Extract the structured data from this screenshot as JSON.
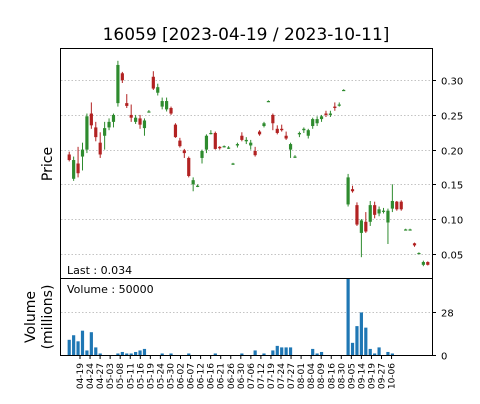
{
  "chart_data": {
    "type": "candlestick",
    "title": "16059   [2023-04-19 / 2023-10-11]",
    "price_panel": {
      "ylabel": "Price",
      "ylim": [
        0.015,
        0.345
      ],
      "yticks": [
        0.05,
        0.1,
        0.15,
        0.2,
        0.25,
        0.3
      ],
      "ytick_labels": [
        "0.05",
        "0.10",
        "0.15",
        "0.20",
        "0.25",
        "0.30"
      ],
      "grid": true,
      "annotation": "Last : 0.034",
      "up_color": "#2e8b2e",
      "down_color": "#b22222"
    },
    "volume_panel": {
      "ylabel_line1": "Volume",
      "ylabel_line2": "(millions)",
      "ylim": [
        0,
        50
      ],
      "yticks": [
        0,
        28
      ],
      "ytick_labels": [
        "0",
        "28"
      ],
      "grid": true,
      "annotation": "Volume : 50000",
      "bar_color": "#1f77b4"
    },
    "x_tick_labels": [
      "04-19",
      "04-24",
      "04-27",
      "05-03",
      "05-08",
      "05-11",
      "05-16",
      "05-19",
      "05-24",
      "05-30",
      "06-02",
      "06-07",
      "06-12",
      "06-16",
      "06-21",
      "06-26",
      "06-30",
      "07-06",
      "07-12",
      "07-19",
      "07-24",
      "07-27",
      "08-01",
      "08-04",
      "08-09",
      "08-16",
      "08-30",
      "09-05",
      "09-14",
      "09-19",
      "09-27",
      "10-06"
    ],
    "candles": [
      {
        "o": 0.193,
        "h": 0.197,
        "l": 0.183,
        "c": 0.185,
        "v": 10
      },
      {
        "o": 0.158,
        "h": 0.19,
        "l": 0.155,
        "c": 0.185,
        "v": 13
      },
      {
        "o": 0.18,
        "h": 0.204,
        "l": 0.16,
        "c": 0.166,
        "v": 9
      },
      {
        "o": 0.19,
        "h": 0.21,
        "l": 0.17,
        "c": 0.2,
        "v": 16
      },
      {
        "o": 0.2,
        "h": 0.252,
        "l": 0.195,
        "c": 0.248,
        "v": 3
      },
      {
        "o": 0.252,
        "h": 0.268,
        "l": 0.23,
        "c": 0.235,
        "v": 15
      },
      {
        "o": 0.232,
        "h": 0.24,
        "l": 0.212,
        "c": 0.218,
        "v": 5
      },
      {
        "o": 0.21,
        "h": 0.225,
        "l": 0.188,
        "c": 0.193,
        "v": 1
      },
      {
        "o": 0.22,
        "h": 0.24,
        "l": 0.2,
        "c": 0.231,
        "v": 0
      },
      {
        "o": 0.232,
        "h": 0.245,
        "l": 0.228,
        "c": 0.24,
        "v": 0
      },
      {
        "o": 0.24,
        "h": 0.252,
        "l": 0.232,
        "c": 0.25,
        "v": 0
      },
      {
        "o": 0.267,
        "h": 0.328,
        "l": 0.262,
        "c": 0.322,
        "v": 1
      },
      {
        "o": 0.31,
        "h": 0.312,
        "l": 0.296,
        "c": 0.3,
        "v": 2
      },
      {
        "o": 0.267,
        "h": 0.28,
        "l": 0.26,
        "c": 0.263,
        "v": 1
      },
      {
        "o": 0.25,
        "h": 0.265,
        "l": 0.24,
        "c": 0.246,
        "v": 1
      },
      {
        "o": 0.24,
        "h": 0.25,
        "l": 0.237,
        "c": 0.246,
        "v": 2
      },
      {
        "o": 0.245,
        "h": 0.25,
        "l": 0.23,
        "c": 0.236,
        "v": 3
      },
      {
        "o": 0.231,
        "h": 0.245,
        "l": 0.22,
        "c": 0.242,
        "v": 4
      },
      {
        "o": 0.255,
        "h": 0.257,
        "l": 0.254,
        "c": 0.255,
        "v": 0
      },
      {
        "o": 0.305,
        "h": 0.313,
        "l": 0.286,
        "c": 0.288,
        "v": 0
      },
      {
        "o": 0.282,
        "h": 0.295,
        "l": 0.278,
        "c": 0.29,
        "v": 0
      },
      {
        "o": 0.262,
        "h": 0.275,
        "l": 0.258,
        "c": 0.27,
        "v": 1
      },
      {
        "o": 0.258,
        "h": 0.275,
        "l": 0.255,
        "c": 0.27,
        "v": 0
      },
      {
        "o": 0.26,
        "h": 0.262,
        "l": 0.25,
        "c": 0.252,
        "v": 1
      },
      {
        "o": 0.236,
        "h": 0.238,
        "l": 0.217,
        "c": 0.218,
        "v": 0
      },
      {
        "o": 0.213,
        "h": 0.217,
        "l": 0.203,
        "c": 0.205,
        "v": 0
      },
      {
        "o": 0.199,
        "h": 0.201,
        "l": 0.188,
        "c": 0.195,
        "v": 0
      },
      {
        "o": 0.188,
        "h": 0.19,
        "l": 0.16,
        "c": 0.162,
        "v": 1
      },
      {
        "o": 0.15,
        "h": 0.16,
        "l": 0.14,
        "c": 0.156,
        "v": 0
      },
      {
        "o": 0.148,
        "h": 0.15,
        "l": 0.146,
        "c": 0.148,
        "v": 0
      },
      {
        "o": 0.188,
        "h": 0.2,
        "l": 0.18,
        "c": 0.198,
        "v": 0
      },
      {
        "o": 0.2,
        "h": 0.222,
        "l": 0.195,
        "c": 0.22,
        "v": 0
      },
      {
        "o": 0.224,
        "h": 0.228,
        "l": 0.222,
        "c": 0.224,
        "v": 0
      },
      {
        "o": 0.224,
        "h": 0.226,
        "l": 0.2,
        "c": 0.201,
        "v": 1
      },
      {
        "o": 0.204,
        "h": 0.205,
        "l": 0.2,
        "c": 0.202,
        "v": 0
      },
      {
        "o": 0.205,
        "h": 0.206,
        "l": 0.203,
        "c": 0.205,
        "v": 0
      },
      {
        "o": 0.203,
        "h": 0.205,
        "l": 0.201,
        "c": 0.203,
        "v": 0
      },
      {
        "o": 0.18,
        "h": 0.181,
        "l": 0.178,
        "c": 0.18,
        "v": 0
      },
      {
        "o": 0.206,
        "h": 0.21,
        "l": 0.203,
        "c": 0.208,
        "v": 0
      },
      {
        "o": 0.22,
        "h": 0.225,
        "l": 0.212,
        "c": 0.214,
        "v": 1
      },
      {
        "o": 0.212,
        "h": 0.218,
        "l": 0.208,
        "c": 0.214,
        "v": 0
      },
      {
        "o": 0.206,
        "h": 0.214,
        "l": 0.2,
        "c": 0.21,
        "v": 0
      },
      {
        "o": 0.198,
        "h": 0.204,
        "l": 0.19,
        "c": 0.192,
        "v": 3
      },
      {
        "o": 0.226,
        "h": 0.228,
        "l": 0.22,
        "c": 0.222,
        "v": 0
      },
      {
        "o": 0.234,
        "h": 0.24,
        "l": 0.232,
        "c": 0.238,
        "v": 1
      },
      {
        "o": 0.27,
        "h": 0.271,
        "l": 0.269,
        "c": 0.27,
        "v": 0
      },
      {
        "o": 0.25,
        "h": 0.252,
        "l": 0.228,
        "c": 0.238,
        "v": 3
      },
      {
        "o": 0.23,
        "h": 0.235,
        "l": 0.222,
        "c": 0.224,
        "v": 6
      },
      {
        "o": 0.23,
        "h": 0.236,
        "l": 0.226,
        "c": 0.228,
        "v": 5
      },
      {
        "o": 0.22,
        "h": 0.226,
        "l": 0.214,
        "c": 0.216,
        "v": 5
      },
      {
        "o": 0.2,
        "h": 0.21,
        "l": 0.188,
        "c": 0.208,
        "v": 5
      },
      {
        "o": 0.19,
        "h": 0.192,
        "l": 0.188,
        "c": 0.19,
        "v": 0
      },
      {
        "o": 0.222,
        "h": 0.226,
        "l": 0.218,
        "c": 0.224,
        "v": 0
      },
      {
        "o": 0.228,
        "h": 0.232,
        "l": 0.224,
        "c": 0.23,
        "v": 0
      },
      {
        "o": 0.22,
        "h": 0.23,
        "l": 0.216,
        "c": 0.228,
        "v": 0
      },
      {
        "o": 0.234,
        "h": 0.246,
        "l": 0.23,
        "c": 0.244,
        "v": 4
      },
      {
        "o": 0.238,
        "h": 0.248,
        "l": 0.234,
        "c": 0.244,
        "v": 1
      },
      {
        "o": 0.244,
        "h": 0.25,
        "l": 0.24,
        "c": 0.248,
        "v": 2
      },
      {
        "o": 0.252,
        "h": 0.256,
        "l": 0.247,
        "c": 0.25,
        "v": 0
      },
      {
        "o": 0.25,
        "h": 0.256,
        "l": 0.247,
        "c": 0.252,
        "v": 0
      },
      {
        "o": 0.262,
        "h": 0.268,
        "l": 0.256,
        "c": 0.26,
        "v": 0
      },
      {
        "o": 0.265,
        "h": 0.268,
        "l": 0.262,
        "c": 0.265,
        "v": 0
      },
      {
        "o": 0.286,
        "h": 0.287,
        "l": 0.285,
        "c": 0.286,
        "v": 0
      },
      {
        "o": 0.121,
        "h": 0.165,
        "l": 0.118,
        "c": 0.16,
        "v": 50
      },
      {
        "o": 0.143,
        "h": 0.148,
        "l": 0.138,
        "c": 0.14,
        "v": 8
      },
      {
        "o": 0.12,
        "h": 0.124,
        "l": 0.09,
        "c": 0.092,
        "v": 19
      },
      {
        "o": 0.08,
        "h": 0.1,
        "l": 0.045,
        "c": 0.098,
        "v": 28
      },
      {
        "o": 0.096,
        "h": 0.11,
        "l": 0.08,
        "c": 0.082,
        "v": 18
      },
      {
        "o": 0.096,
        "h": 0.126,
        "l": 0.09,
        "c": 0.12,
        "v": 4
      },
      {
        "o": 0.12,
        "h": 0.125,
        "l": 0.101,
        "c": 0.106,
        "v": 1
      },
      {
        "o": 0.108,
        "h": 0.118,
        "l": 0.104,
        "c": 0.114,
        "v": 5
      },
      {
        "o": 0.111,
        "h": 0.116,
        "l": 0.108,
        "c": 0.112,
        "v": 0
      },
      {
        "o": 0.095,
        "h": 0.115,
        "l": 0.064,
        "c": 0.112,
        "v": 2
      },
      {
        "o": 0.115,
        "h": 0.15,
        "l": 0.11,
        "c": 0.126,
        "v": 1
      },
      {
        "o": 0.125,
        "h": 0.126,
        "l": 0.112,
        "c": 0.114,
        "v": 0
      },
      {
        "o": 0.125,
        "h": 0.127,
        "l": 0.112,
        "c": 0.114,
        "v": 0
      },
      {
        "o": 0.085,
        "h": 0.086,
        "l": 0.084,
        "c": 0.085,
        "v": 0
      },
      {
        "o": 0.085,
        "h": 0.086,
        "l": 0.084,
        "c": 0.085,
        "v": 0
      },
      {
        "o": 0.065,
        "h": 0.066,
        "l": 0.06,
        "c": 0.062,
        "v": 0
      },
      {
        "o": 0.051,
        "h": 0.052,
        "l": 0.05,
        "c": 0.051,
        "v": 0
      },
      {
        "o": 0.034,
        "h": 0.04,
        "l": 0.032,
        "c": 0.038,
        "v": 0
      },
      {
        "o": 0.038,
        "h": 0.039,
        "l": 0.033,
        "c": 0.034,
        "v": 0
      }
    ]
  }
}
